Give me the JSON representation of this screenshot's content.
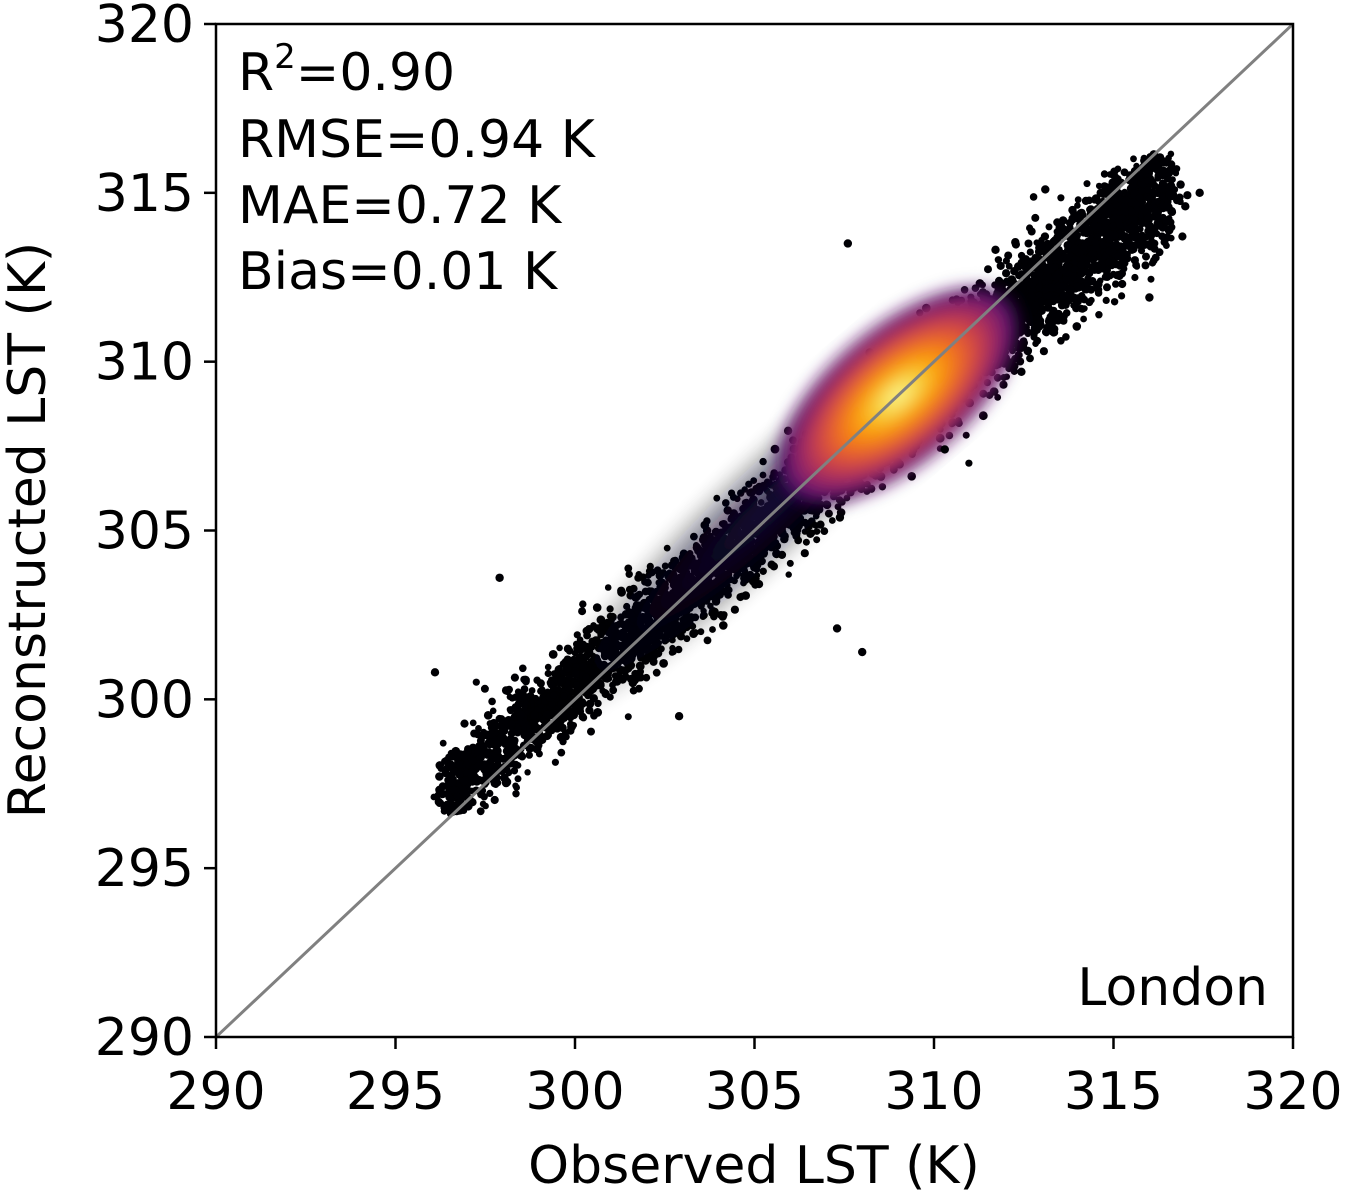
{
  "chart_data": {
    "type": "scatter",
    "title": "",
    "xlabel": "Observed LST (K)",
    "ylabel": "Reconstructed LST (K)",
    "xlim": [
      290,
      320
    ],
    "ylim": [
      290,
      320
    ],
    "xticks": [
      "290",
      "295",
      "300",
      "305",
      "310",
      "315",
      "320"
    ],
    "yticks": [
      "290",
      "295",
      "300",
      "305",
      "310",
      "315",
      "320"
    ],
    "grid": false,
    "legend": "none",
    "identity_line": {
      "from": [
        290,
        290
      ],
      "to": [
        320,
        320
      ],
      "color": "#808080"
    },
    "density_colormap": [
      "#000004",
      "#1b0c41",
      "#4a0c6b",
      "#781c6d",
      "#a52c60",
      "#cf4446",
      "#ed6925",
      "#fb9b06",
      "#f7d13d",
      "#fcffa4"
    ],
    "density_peak": {
      "x": 309.0,
      "y": 309.0
    },
    "point_cloud": {
      "x_range": [
        296.0,
        317.5
      ],
      "y_range": [
        296.5,
        316.2
      ],
      "note": ""
    },
    "outliers": [
      {
        "x": 296.1,
        "y": 300.8
      },
      {
        "x": 297.9,
        "y": 303.6
      },
      {
        "x": 302.9,
        "y": 299.5
      },
      {
        "x": 307.3,
        "y": 302.1
      },
      {
        "x": 308.0,
        "y": 301.4
      },
      {
        "x": 307.6,
        "y": 313.5
      },
      {
        "x": 313.1,
        "y": 315.1
      },
      {
        "x": 316.0,
        "y": 311.9
      },
      {
        "x": 317.0,
        "y": 314.6
      },
      {
        "x": 317.4,
        "y": 315.0
      },
      {
        "x": 310.3,
        "y": 307.4
      }
    ],
    "annotations": {
      "r2_label": "R",
      "r2_sup": "2",
      "r2_value": "=0.90",
      "rmse": "RMSE=0.94 K",
      "mae": "MAE=0.72 K",
      "bias": "Bias=0.01 K",
      "region": "London"
    }
  }
}
